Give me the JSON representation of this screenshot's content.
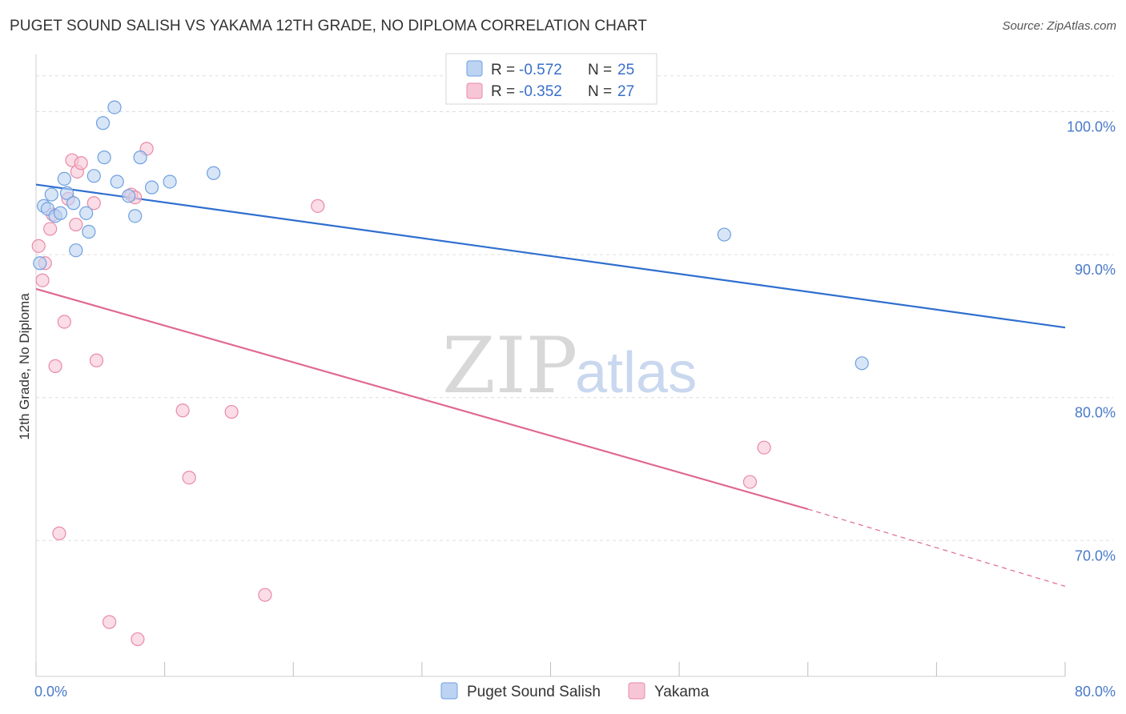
{
  "header": {
    "title": "PUGET SOUND SALISH VS YAKAMA 12TH GRADE, NO DIPLOMA CORRELATION CHART",
    "source": "Source: ZipAtlas.com"
  },
  "watermark": {
    "zip": "ZIP",
    "atlas": "atlas"
  },
  "colors": {
    "blue": "#6fa0e0",
    "blue_fill": "#bcd3f2",
    "blue_line": "#2f6fcf",
    "pink": "#e98aa8",
    "pink_fill": "#f7c6d6",
    "pink_line": "#e06890",
    "tick_text": "#4a7ac9",
    "grid": "#dddddd"
  },
  "chart_data": {
    "type": "scatter",
    "title": "PUGET SOUND SALISH VS YAKAMA 12TH GRADE, NO DIPLOMA CORRELATION CHART",
    "xlabel": "",
    "ylabel": "12th Grade, No Diploma",
    "xlim": [
      0,
      80
    ],
    "ylim": [
      60.5,
      104
    ],
    "x_tick_labels": [
      "0.0%",
      "80.0%"
    ],
    "y_ticks": [
      70,
      80,
      90,
      100
    ],
    "y_tick_labels": [
      "70.0%",
      "80.0%",
      "90.0%",
      "100.0%"
    ],
    "grid": true,
    "legend_position": "top-center",
    "legend": [
      {
        "series": "Puget Sound Salish",
        "r_label": "R = ",
        "r": "-0.572",
        "n_label": "N = ",
        "n": "25"
      },
      {
        "series": "Yakama",
        "r_label": "R = ",
        "r": "-0.352",
        "n_label": "N = ",
        "n": "27"
      }
    ],
    "series": [
      {
        "name": "Puget Sound Salish",
        "color": "#6fa0e0",
        "points": [
          [
            0.3,
            89.4
          ],
          [
            0.6,
            93.4
          ],
          [
            0.9,
            93.2
          ],
          [
            1.2,
            94.2
          ],
          [
            1.5,
            92.7
          ],
          [
            1.9,
            92.9
          ],
          [
            2.2,
            95.3
          ],
          [
            2.4,
            94.3
          ],
          [
            2.9,
            93.6
          ],
          [
            3.1,
            90.3
          ],
          [
            3.9,
            92.9
          ],
          [
            4.1,
            91.6
          ],
          [
            4.5,
            95.5
          ],
          [
            5.2,
            99.2
          ],
          [
            5.3,
            96.8
          ],
          [
            6.1,
            100.3
          ],
          [
            6.3,
            95.1
          ],
          [
            7.2,
            94.1
          ],
          [
            7.7,
            92.7
          ],
          [
            8.1,
            96.8
          ],
          [
            9.0,
            94.7
          ],
          [
            10.4,
            95.1
          ],
          [
            13.8,
            95.7
          ],
          [
            53.5,
            91.4
          ],
          [
            64.2,
            82.4
          ]
        ],
        "trend": {
          "x": [
            0,
            80
          ],
          "y": [
            94.9,
            84.9
          ]
        }
      },
      {
        "name": "Yakama",
        "color": "#e98aa8",
        "points": [
          [
            0.2,
            90.6
          ],
          [
            0.5,
            88.2
          ],
          [
            0.7,
            89.4
          ],
          [
            1.1,
            91.8
          ],
          [
            1.3,
            92.8
          ],
          [
            1.5,
            82.2
          ],
          [
            1.8,
            70.5
          ],
          [
            2.2,
            85.3
          ],
          [
            2.5,
            93.9
          ],
          [
            2.8,
            96.6
          ],
          [
            3.1,
            92.1
          ],
          [
            3.2,
            95.8
          ],
          [
            3.5,
            96.4
          ],
          [
            4.5,
            93.6
          ],
          [
            4.7,
            82.6
          ],
          [
            5.7,
            64.3
          ],
          [
            7.4,
            94.2
          ],
          [
            7.7,
            94.0
          ],
          [
            7.9,
            63.1
          ],
          [
            8.6,
            97.4
          ],
          [
            11.4,
            79.1
          ],
          [
            11.9,
            74.4
          ],
          [
            15.2,
            79.0
          ],
          [
            17.8,
            66.2
          ],
          [
            21.9,
            93.4
          ],
          [
            55.5,
            74.1
          ],
          [
            56.6,
            76.5
          ]
        ],
        "trend": {
          "x": [
            0,
            60
          ],
          "y": [
            87.6,
            72.2
          ]
        },
        "trend_extension": {
          "x": [
            60,
            80
          ],
          "y": [
            72.2,
            66.8
          ]
        }
      }
    ]
  },
  "bottom_legend": [
    {
      "label": "Puget Sound Salish"
    },
    {
      "label": "Yakama"
    }
  ]
}
